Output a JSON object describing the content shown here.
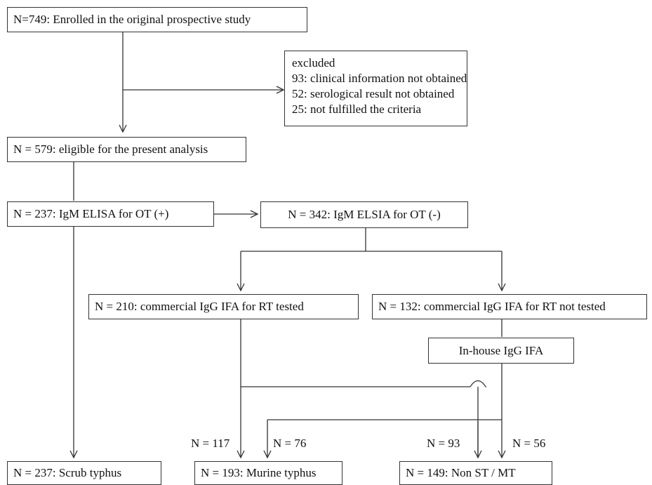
{
  "boxes": {
    "enrolled": "N=749: Enrolled in the original prospective study",
    "excluded": {
      "title": "excluded",
      "lines": [
        "93: clinical information not obtained",
        "52: serological result not obtained",
        "25: not fulfilled the criteria"
      ]
    },
    "eligible": "N = 579: eligible for the present analysis",
    "igm_pos": "N = 237: IgM ELISA for OT (+)",
    "igm_neg": "N = 342: IgM ELSIA for OT (-)",
    "ifa_tested": "N = 210: commercial IgG IFA for RT tested",
    "ifa_not_tested": "N = 132: commercial IgG IFA for RT not tested",
    "inhouse": "In-house IgG IFA",
    "scrub": "N = 237: Scrub typhus",
    "murine": "N = 193: Murine typhus",
    "non_st_mt": "N = 149: Non ST / MT"
  },
  "edge_labels": {
    "n117": "N = 117",
    "n76": "N = 76",
    "n93": "N = 93",
    "n56": "N = 56"
  }
}
